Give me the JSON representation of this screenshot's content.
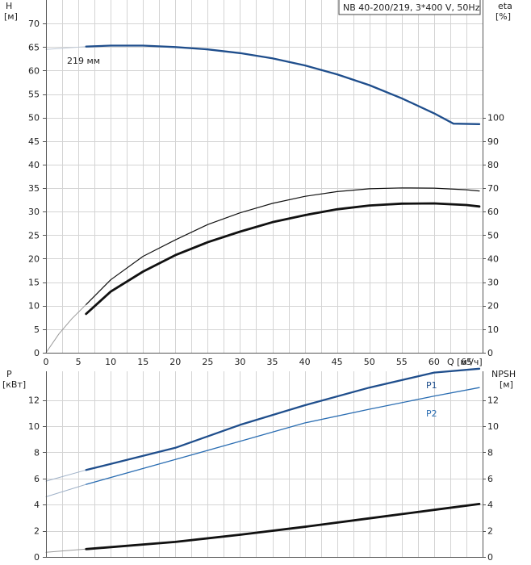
{
  "chart_data": [
    {
      "type": "line",
      "title": "",
      "model_label": "NB 40-200/219, 3*400 V, 50Hz",
      "xlabel": "Q [м³/ч]",
      "xlim": [
        0,
        67.5
      ],
      "xticks": [
        0,
        5,
        10,
        15,
        20,
        25,
        30,
        35,
        40,
        45,
        50,
        55,
        60,
        65
      ],
      "left_axis": {
        "label": "H",
        "unit": "[м]",
        "ylim": [
          0,
          75
        ],
        "ticks": [
          0,
          5,
          10,
          15,
          20,
          25,
          30,
          35,
          40,
          45,
          50,
          55,
          60,
          65,
          70
        ]
      },
      "right_axis": {
        "label": "eta",
        "unit": "[%]",
        "ylim": [
          0,
          150
        ],
        "ticks": [
          0,
          10,
          20,
          30,
          40,
          50,
          60,
          70,
          80,
          90,
          100
        ]
      },
      "annotations": [
        {
          "text": "219 мм",
          "x": 5.3,
          "y": 66.2
        }
      ],
      "grid": true,
      "series": [
        {
          "name": "",
          "axis": "left",
          "color": "#bfc9d6",
          "width": 1,
          "x": [
            0,
            6.2
          ],
          "y": [
            64.5,
            65.1
          ]
        },
        {
          "name": "",
          "axis": "left",
          "color": "#1f4e8c",
          "width": 2.3,
          "x": [
            6.2,
            10,
            15,
            20,
            25,
            30,
            35,
            40,
            45,
            50,
            55,
            60,
            63,
            67
          ],
          "y": [
            65.1,
            65.3,
            65.3,
            65.0,
            64.5,
            63.7,
            62.6,
            61.1,
            59.2,
            56.9,
            54.1,
            50.9,
            48.7,
            48.6
          ]
        },
        {
          "name": "",
          "axis": "right",
          "color": "#9a9a9a",
          "width": 1,
          "x": [
            0,
            2,
            4,
            6.2
          ],
          "y": [
            0,
            8,
            14.5,
            20.5
          ]
        },
        {
          "name": "",
          "axis": "right",
          "color": "#111111",
          "width": 1.2,
          "x": [
            6.2,
            10,
            15,
            20,
            25,
            30,
            35,
            40,
            45,
            50,
            55,
            60,
            65,
            67
          ],
          "y": [
            20.5,
            31,
            41,
            48,
            54.5,
            59.5,
            63.5,
            66.5,
            68.5,
            69.7,
            70.1,
            70,
            69.3,
            68.8
          ]
        },
        {
          "name": "",
          "axis": "right",
          "color": "#111111",
          "width": 2.8,
          "x": [
            6.2,
            10,
            15,
            20,
            25,
            30,
            35,
            40,
            45,
            50,
            55,
            60,
            65,
            67
          ],
          "y": [
            16.5,
            26,
            34.5,
            41.5,
            47,
            51.5,
            55.5,
            58.5,
            61,
            62.6,
            63.4,
            63.5,
            62.8,
            62.2
          ]
        }
      ]
    },
    {
      "type": "line",
      "title": "",
      "xlim": [
        0,
        67.5
      ],
      "left_axis": {
        "label": "P",
        "unit": "[кВт]",
        "ylim": [
          0,
          14.2
        ],
        "ticks": [
          0,
          2,
          4,
          6,
          8,
          10,
          12
        ]
      },
      "right_axis": {
        "label": "NPSH",
        "unit": "[м]",
        "ylim": [
          0,
          14.2
        ],
        "ticks": [
          0,
          2,
          4,
          6,
          8,
          10,
          12
        ]
      },
      "grid": true,
      "series": [
        {
          "name": "",
          "axis": "left",
          "color": "#9fb1c8",
          "width": 1,
          "x": [
            0,
            6.2
          ],
          "y": [
            5.8,
            6.65
          ]
        },
        {
          "name": "P1",
          "axis": "left",
          "color": "#1f4e8c",
          "width": 2.3,
          "x": [
            6.2,
            20,
            30,
            40,
            50,
            60,
            67
          ],
          "y": [
            6.65,
            8.35,
            10.1,
            11.6,
            12.95,
            14.1,
            14.4
          ]
        },
        {
          "name": "",
          "axis": "left",
          "color": "#9fb1c8",
          "width": 1,
          "x": [
            0,
            6.2
          ],
          "y": [
            4.6,
            5.55
          ]
        },
        {
          "name": "P2",
          "axis": "left",
          "color": "#2a6db2",
          "width": 1.3,
          "x": [
            6.2,
            20,
            30,
            40,
            50,
            60,
            67
          ],
          "y": [
            5.55,
            7.45,
            8.85,
            10.25,
            11.3,
            12.3,
            12.95
          ]
        },
        {
          "name": "",
          "axis": "right",
          "color": "#9a9a9a",
          "width": 1,
          "x": [
            0,
            6.2
          ],
          "y": [
            0.35,
            0.6
          ]
        },
        {
          "name": "",
          "axis": "right",
          "color": "#111111",
          "width": 2.8,
          "x": [
            6.2,
            20,
            30,
            40,
            50,
            60,
            67
          ],
          "y": [
            0.6,
            1.15,
            1.7,
            2.3,
            2.95,
            3.6,
            4.05
          ]
        }
      ]
    }
  ]
}
